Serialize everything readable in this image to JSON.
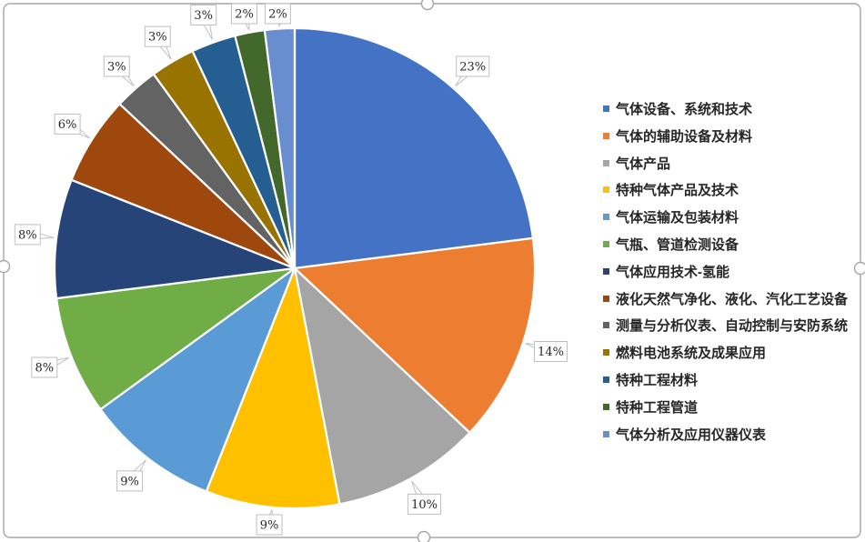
{
  "chart_data": {
    "type": "pie",
    "title": "",
    "legend_position": "right",
    "start_angle_deg": 0,
    "direction": "clockwise",
    "total": 100,
    "categories": [
      "气体设备、系统和技术",
      "气体的辅助设备及材料",
      "气体产品",
      "特种气体产品及技术",
      "气体运输及包装材料",
      "气瓶、管道检测设备",
      "气体应用技术-氢能",
      "液化天然气净化、液化、汽化工艺设备",
      "测量与分析仪表、自动控制与安防系统",
      "燃料电池系统及成果应用",
      "特种工程材料",
      "特种工程管道",
      "气体分析及应用仪器仪表"
    ],
    "values": [
      23,
      14,
      10,
      9,
      9,
      8,
      8,
      6,
      3,
      3,
      3,
      2,
      2
    ],
    "items": [
      {
        "name": "气体设备、系统和技术",
        "value": 23,
        "pct_label": "23%",
        "color": "#4472C4"
      },
      {
        "name": "气体的辅助设备及材料",
        "value": 14,
        "pct_label": "14%",
        "color": "#ED7D31"
      },
      {
        "name": "气体产品",
        "value": 10,
        "pct_label": "10%",
        "color": "#A5A5A5"
      },
      {
        "name": "特种气体产品及技术",
        "value": 9,
        "pct_label": "9%",
        "color": "#FFC000"
      },
      {
        "name": "气体运输及包装材料",
        "value": 9,
        "pct_label": "9%",
        "color": "#5B9BD5"
      },
      {
        "name": "气瓶、管道检测设备",
        "value": 8,
        "pct_label": "8%",
        "color": "#70AD47"
      },
      {
        "name": "气体应用技术-氢能",
        "value": 8,
        "pct_label": "8%",
        "color": "#264478"
      },
      {
        "name": "液化天然气净化、液化、汽化工艺设备",
        "value": 6,
        "pct_label": "6%",
        "color": "#9E480E"
      },
      {
        "name": "测量与分析仪表、自动控制与安防系统",
        "value": 3,
        "pct_label": "3%",
        "color": "#636363"
      },
      {
        "name": "燃料电池系统及成果应用",
        "value": 3,
        "pct_label": "3%",
        "color": "#997300"
      },
      {
        "name": "特种工程材料",
        "value": 3,
        "pct_label": "3%",
        "color": "#255E91"
      },
      {
        "name": "特种工程管道",
        "value": 2,
        "pct_label": "2%",
        "color": "#43682B"
      },
      {
        "name": "气体分析及应用仪器仪表",
        "value": 2,
        "pct_label": "2%",
        "color": "#698ED0"
      }
    ]
  },
  "canvas": {
    "background": "#FFFFFF",
    "selection_border_color": "#A6A6A6",
    "handle_fill": "#FFFFFF",
    "data_label_box_fill": "#FFFFFF",
    "data_label_box_border": "#BFBFBF",
    "data_label_text_color": "#262626",
    "legend_text_color": "#262626"
  }
}
